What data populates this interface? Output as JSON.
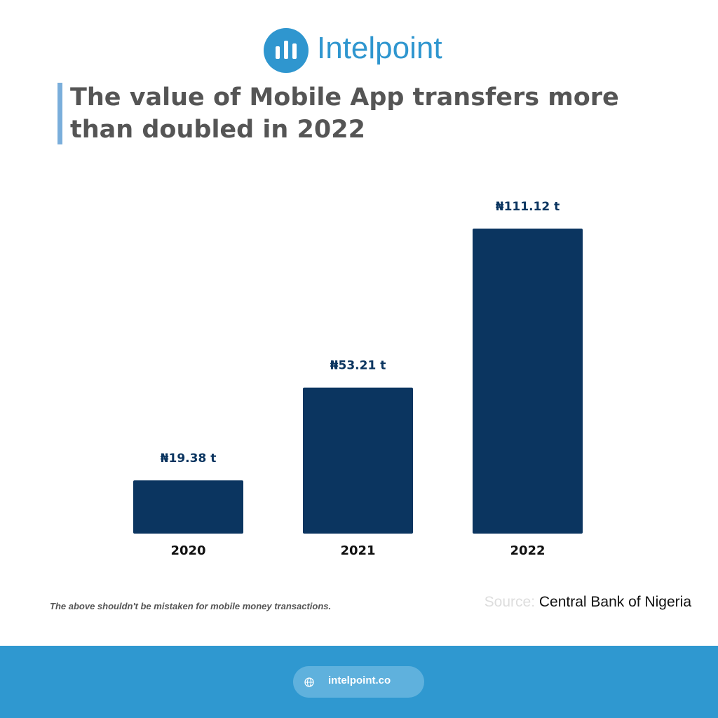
{
  "brand": "Intelpoint",
  "chart_data": {
    "type": "bar",
    "title": "The value of Mobile App transfers more than doubled in 2022",
    "categories": [
      "2020",
      "2021",
      "2022"
    ],
    "values": [
      19.38,
      53.21,
      111.12
    ],
    "value_labels": [
      "₦19.38 t",
      "₦53.21 t",
      "₦111.12 t"
    ],
    "color": "#0b3560"
  },
  "note": "The above shouldn't be mistaken for mobile money transactions.",
  "source": {
    "label": "Source:",
    "text": "Central Bank of Nigeria"
  },
  "footer": {
    "url": "intelpoint.co"
  }
}
